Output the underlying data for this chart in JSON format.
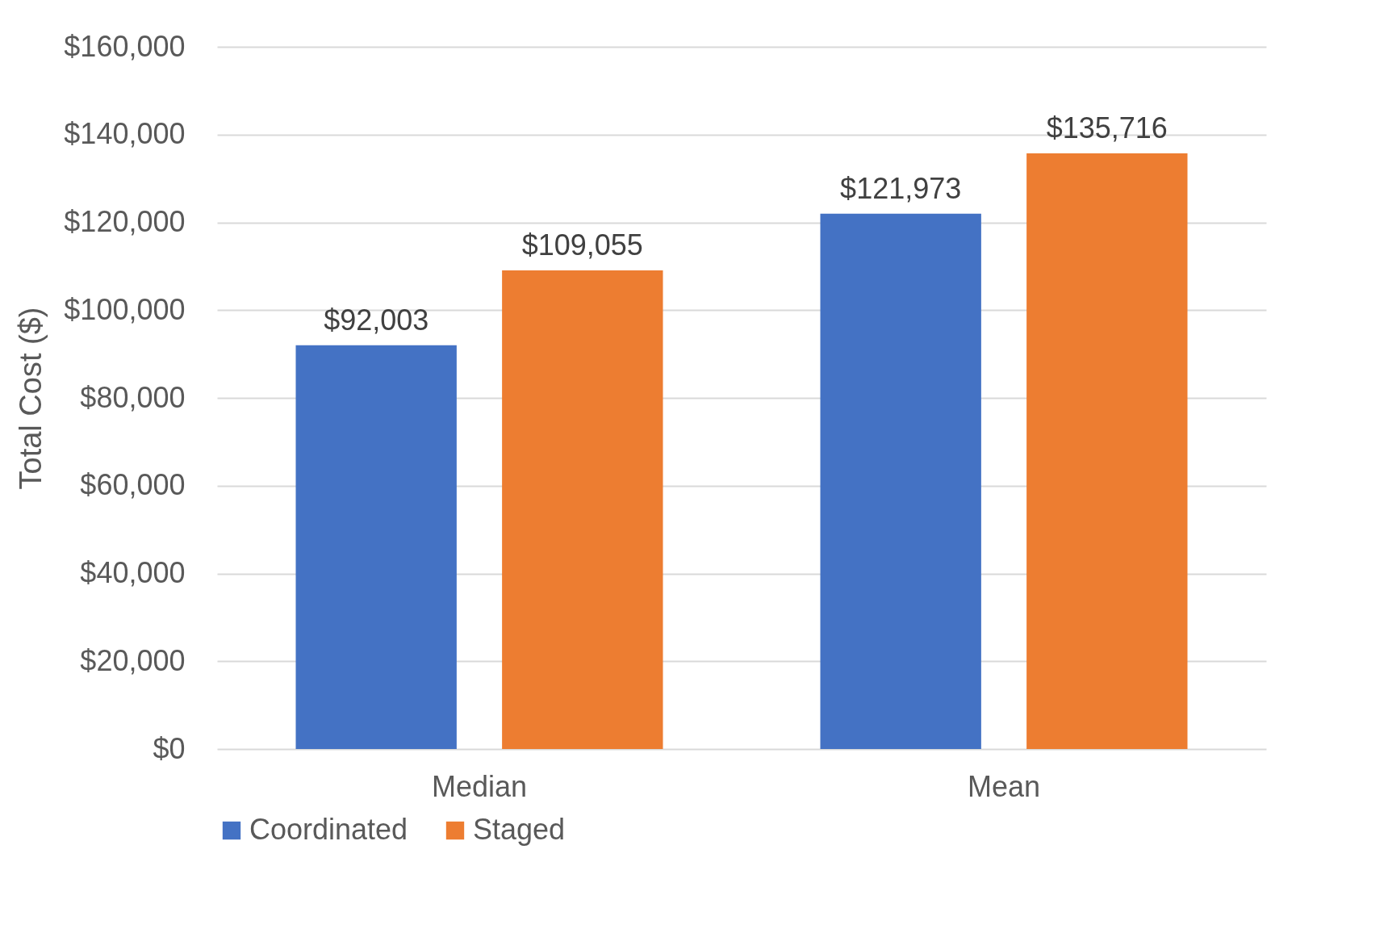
{
  "chart_data": {
    "type": "bar",
    "ylabel": "Total Cost ($)",
    "categories": [
      "Median",
      "Mean"
    ],
    "series": [
      {
        "name": "Coordinated",
        "color": "#4472c4",
        "values": [
          92003,
          121973
        ],
        "value_labels": [
          "$92,003",
          "$121,973"
        ]
      },
      {
        "name": "Staged",
        "color": "#ed7d31",
        "values": [
          109055,
          135716
        ],
        "value_labels": [
          "$109,055",
          "$135,716"
        ]
      }
    ],
    "ylim": [
      0,
      160000
    ],
    "yticks": [
      {
        "value": 0,
        "label": "$0"
      },
      {
        "value": 20000,
        "label": "$20,000"
      },
      {
        "value": 40000,
        "label": "$40,000"
      },
      {
        "value": 60000,
        "label": "$60,000"
      },
      {
        "value": 80000,
        "label": "$80,000"
      },
      {
        "value": 100000,
        "label": "$100,000"
      },
      {
        "value": 120000,
        "label": "$120,000"
      },
      {
        "value": 140000,
        "label": "$140,000"
      },
      {
        "value": 160000,
        "label": "$160,000"
      }
    ],
    "grid": "y",
    "legend": "bottom"
  }
}
